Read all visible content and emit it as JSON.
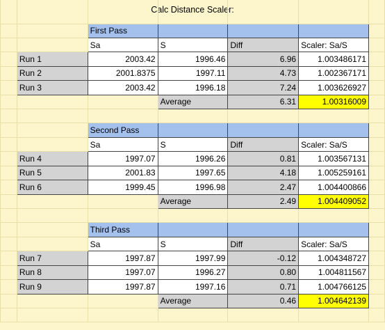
{
  "title": "Calc Distance Scaler:",
  "sections": [
    {
      "name": "First Pass",
      "headers": [
        "Sa",
        "S",
        "Diff",
        "Scaler: Sa/S"
      ],
      "rows": [
        {
          "label": "Run 1",
          "sa": "2003.42",
          "s": "1996.46",
          "diff": "6.96",
          "scaler": "1.003486171"
        },
        {
          "label": "Run 2",
          "sa": "2001.8375",
          "s": "1997.11",
          "diff": "4.73",
          "scaler": "1.002367171"
        },
        {
          "label": "Run 3",
          "sa": "2003.42",
          "s": "1996.18",
          "diff": "7.24",
          "scaler": "1.003626927"
        }
      ],
      "average_label": "Average",
      "average_diff": "6.31",
      "average_scaler": "1.00316009"
    },
    {
      "name": "Second Pass",
      "headers": [
        "Sa",
        "S",
        "Diff",
        "Scaler: Sa/S"
      ],
      "rows": [
        {
          "label": "Run 4",
          "sa": "1997.07",
          "s": "1996.26",
          "diff": "0.81",
          "scaler": "1.003567131"
        },
        {
          "label": "Run 5",
          "sa": "2001.83",
          "s": "1997.65",
          "diff": "4.18",
          "scaler": "1.005259161"
        },
        {
          "label": "Run 6",
          "sa": "1999.45",
          "s": "1996.98",
          "diff": "2.47",
          "scaler": "1.004400866"
        }
      ],
      "average_label": "Average",
      "average_diff": "2.49",
      "average_scaler": "1.004409052"
    },
    {
      "name": "Third Pass",
      "headers": [
        "Sa",
        "S",
        "Diff",
        "Scaler: Sa/S"
      ],
      "rows": [
        {
          "label": "Run 7",
          "sa": "1997.87",
          "s": "1997.99",
          "diff": "-0.12",
          "scaler": "1.004348727"
        },
        {
          "label": "Run 8",
          "sa": "1997.07",
          "s": "1996.27",
          "diff": "0.80",
          "scaler": "1.004811567"
        },
        {
          "label": "Run 9",
          "sa": "1997.87",
          "s": "1997.16",
          "diff": "0.71",
          "scaler": "1.004766125"
        }
      ],
      "average_label": "Average",
      "average_diff": "0.46",
      "average_scaler": "1.004642139"
    }
  ],
  "colors": {
    "background": "#fdf6cc",
    "section_header": "#a4c1ee",
    "gray_cell": "#d3d3d3",
    "highlight": "#ffff00"
  }
}
